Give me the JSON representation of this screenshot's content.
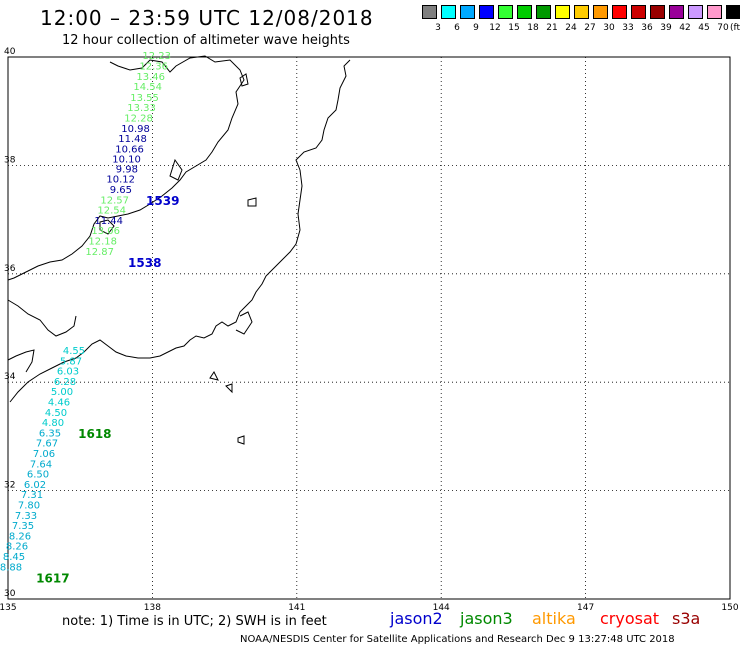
{
  "header": {
    "title": "12:00 – 23:59 UTC 12/08/2018",
    "subtitle": "12 hour collection of altimeter wave heights"
  },
  "scale": {
    "unit": "(ft)",
    "items": [
      {
        "label": "3",
        "color": "#7f7f7f"
      },
      {
        "label": "6",
        "color": "#00ffff"
      },
      {
        "label": "9",
        "color": "#00a9ff"
      },
      {
        "label": "12",
        "color": "#0000ff"
      },
      {
        "label": "15",
        "color": "#33ff33"
      },
      {
        "label": "18",
        "color": "#00cc00"
      },
      {
        "label": "21",
        "color": "#009900"
      },
      {
        "label": "24",
        "color": "#ffff00"
      },
      {
        "label": "27",
        "color": "#ffcc00"
      },
      {
        "label": "30",
        "color": "#ff9900"
      },
      {
        "label": "33",
        "color": "#ff0000"
      },
      {
        "label": "36",
        "color": "#cc0000"
      },
      {
        "label": "39",
        "color": "#990000"
      },
      {
        "label": "42",
        "color": "#990099"
      },
      {
        "label": "45",
        "color": "#cc99ff"
      },
      {
        "label": "70",
        "color": "#ff99cc"
      },
      {
        "label": "",
        "color": "#000000"
      }
    ]
  },
  "axes": {
    "lon_ticks": [
      "135",
      "138",
      "141",
      "144",
      "147",
      "150"
    ],
    "lat_ticks": [
      "40",
      "38",
      "36",
      "34",
      "32",
      "30"
    ]
  },
  "tracks": [
    {
      "pass": "1539",
      "pass_color": "#0000cc",
      "points": [
        {
          "v": "12.23",
          "lat": 39.96,
          "color": "#66ee66"
        },
        {
          "v": "12.36",
          "lat": 39.77,
          "color": "#66ee66"
        },
        {
          "v": "13.46",
          "lat": 39.58,
          "color": "#66ee66"
        },
        {
          "v": "14.54",
          "lat": 39.39,
          "color": "#66ee66"
        },
        {
          "v": "13.55",
          "lat": 39.19,
          "color": "#66ee66"
        },
        {
          "v": "13.33",
          "lat": 39.0,
          "color": "#66ee66"
        },
        {
          "v": "12.28",
          "lat": 38.81,
          "color": "#66ee66"
        },
        {
          "v": "10.98",
          "lat": 38.62,
          "color": "#000099"
        },
        {
          "v": "11.48",
          "lat": 38.43,
          "color": "#000099"
        },
        {
          "v": "10.66",
          "lat": 38.24,
          "color": "#000099"
        },
        {
          "v": "10.10",
          "lat": 38.05,
          "color": "#000099"
        },
        {
          "v": "9.98",
          "lat": 37.87,
          "color": "#000099"
        },
        {
          "v": "10.12",
          "lat": 37.68,
          "color": "#000099"
        },
        {
          "v": "9.65",
          "lat": 37.49,
          "color": "#000099"
        }
      ]
    },
    {
      "pass": "1538",
      "pass_color": "#0000cc",
      "points": [
        {
          "v": "12.57",
          "lat": 37.3,
          "color": "#66ee66"
        },
        {
          "v": "12.54",
          "lat": 37.11,
          "color": "#66ee66"
        },
        {
          "v": "11.44",
          "lat": 36.92,
          "color": "#000099"
        },
        {
          "v": "13.06",
          "lat": 36.73,
          "color": "#66ee66"
        },
        {
          "v": "12.18",
          "lat": 36.54,
          "color": "#66ee66"
        },
        {
          "v": "12.87",
          "lat": 36.35,
          "color": "#66ee66"
        }
      ]
    },
    {
      "pass": "1618",
      "pass_color": "#008800",
      "points": [
        {
          "v": "4.55",
          "lat": 34.52,
          "color": "#00cccc"
        },
        {
          "v": "5.87",
          "lat": 34.33,
          "color": "#00cccc"
        },
        {
          "v": "6.03",
          "lat": 34.14,
          "color": "#00cccc"
        },
        {
          "v": "6.28",
          "lat": 33.95,
          "color": "#00cccc"
        },
        {
          "v": "5.00",
          "lat": 33.76,
          "color": "#00cccc"
        },
        {
          "v": "4.46",
          "lat": 33.57,
          "color": "#00cccc"
        },
        {
          "v": "4.50",
          "lat": 33.38,
          "color": "#00cccc"
        },
        {
          "v": "4.80",
          "lat": 33.19,
          "color": "#00cccc"
        }
      ]
    },
    {
      "pass": "1617",
      "pass_color": "#008800",
      "points": [
        {
          "v": "6.35",
          "lat": 33.0,
          "color": "#00aacc"
        },
        {
          "v": "7.67",
          "lat": 32.81,
          "color": "#00aacc"
        },
        {
          "v": "7.06",
          "lat": 32.62,
          "color": "#00aacc"
        },
        {
          "v": "7.64",
          "lat": 32.43,
          "color": "#00aacc"
        },
        {
          "v": "6.50",
          "lat": 32.24,
          "color": "#00aacc"
        },
        {
          "v": "6.02",
          "lat": 32.05,
          "color": "#00aacc"
        },
        {
          "v": "7.31",
          "lat": 31.86,
          "color": "#00aacc"
        },
        {
          "v": "7.80",
          "lat": 31.67,
          "color": "#00aacc"
        },
        {
          "v": "7.33",
          "lat": 31.48,
          "color": "#00aacc"
        },
        {
          "v": "7.35",
          "lat": 31.29,
          "color": "#00aacc"
        },
        {
          "v": "8.26",
          "lat": 31.1,
          "color": "#00aacc"
        },
        {
          "v": "8.26",
          "lat": 30.91,
          "color": "#00aacc"
        },
        {
          "v": "8.45",
          "lat": 30.72,
          "color": "#00aacc"
        },
        {
          "v": "8.88",
          "lat": 30.53,
          "color": "#00aacc"
        }
      ]
    }
  ],
  "footer": {
    "note": "note:  1) Time is in UTC;  2) SWH is in feet",
    "satellites": [
      {
        "name": "jason2",
        "color": "#0000cc"
      },
      {
        "name": "jason3",
        "color": "#008800"
      },
      {
        "name": "altika",
        "color": "#ff9900"
      },
      {
        "name": "cryosat",
        "color": "#ff0000"
      },
      {
        "name": "s3a",
        "color": "#990000"
      }
    ],
    "credit": "NOAA/NESDIS Center for Satellite Applications and Research     Dec  9 13:27:48 UTC 2018"
  }
}
